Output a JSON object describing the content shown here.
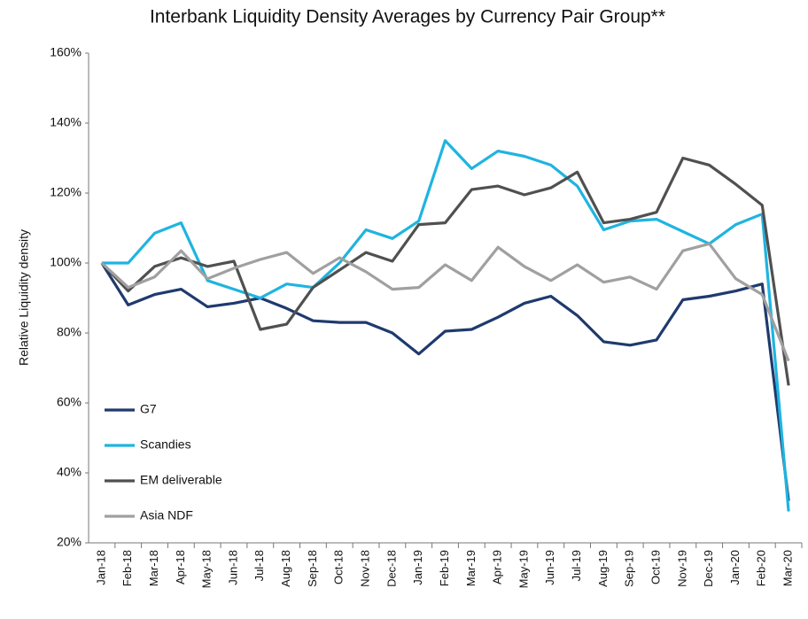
{
  "chart_data": {
    "type": "line",
    "title": "Interbank Liquidity Density Averages by Currency Pair Group**",
    "y_label": "Relative Liquidity density",
    "categories": [
      "Jan-18",
      "Feb-18",
      "Mar-18",
      "Apr-18",
      "May-18",
      "Jun-18",
      "Jul-18",
      "Aug-18",
      "Sep-18",
      "Oct-18",
      "Nov-18",
      "Dec-18",
      "Jan-19",
      "Feb-19",
      "Mar-19",
      "Apr-19",
      "May-19",
      "Jun-19",
      "Jul-19",
      "Aug-19",
      "Sep-19",
      "Oct-19",
      "Nov-19",
      "Dec-19",
      "Jan-20",
      "Feb-20",
      "Mar-20"
    ],
    "series": [
      {
        "name": "G7",
        "color": "#1f3a6e",
        "values": [
          100,
          88,
          91,
          92.5,
          87.5,
          88.5,
          90,
          87,
          83.5,
          83,
          83,
          80,
          74,
          80.5,
          81,
          84.5,
          88.5,
          90.5,
          85,
          77.5,
          76.5,
          78,
          89.5,
          90.5,
          92,
          94,
          32
        ]
      },
      {
        "name": "Scandies",
        "color": "#1fb4e0",
        "values": [
          100,
          100,
          108.5,
          111.5,
          95,
          92.5,
          90,
          94,
          93,
          100,
          109.5,
          107,
          112,
          135,
          127,
          132,
          130.5,
          128,
          122,
          109.5,
          112,
          112.5,
          109,
          105.5,
          111,
          114,
          29
        ]
      },
      {
        "name": "EM deliverable",
        "color": "#505050",
        "values": [
          100,
          92,
          99,
          101.5,
          99,
          100.5,
          81,
          82.5,
          93,
          98,
          103,
          100.5,
          111,
          111.5,
          121,
          122,
          119.5,
          121.5,
          126,
          111.5,
          112.5,
          114.5,
          130,
          128,
          122.5,
          116.5,
          65
        ]
      },
      {
        "name": "Asia NDF",
        "color": "#a0a0a0",
        "values": [
          100,
          93,
          96,
          103.5,
          95.5,
          98.5,
          101,
          103,
          97,
          101.5,
          97.5,
          92.5,
          93,
          99.5,
          95,
          104.5,
          99,
          95,
          99.5,
          94.5,
          96,
          92.5,
          103.5,
          105.5,
          95.5,
          91,
          72
        ]
      }
    ],
    "ylim": [
      20,
      160
    ],
    "yticks": [
      {
        "value": 20,
        "label": "20%"
      },
      {
        "value": 40,
        "label": "40%"
      },
      {
        "value": 60,
        "label": "60%"
      },
      {
        "value": 80,
        "label": "80%"
      },
      {
        "value": 100,
        "label": "100%"
      },
      {
        "value": 120,
        "label": "120%"
      },
      {
        "value": 140,
        "label": "140%"
      },
      {
        "value": 160,
        "label": "160%"
      }
    ],
    "grid": false,
    "legend": "lower-left"
  }
}
